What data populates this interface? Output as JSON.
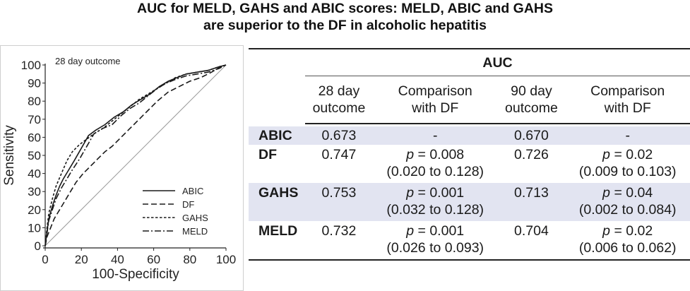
{
  "title": {
    "line1": "AUC for MELD, GAHS and ABIC scores: MELD, ABIC and GAHS",
    "line2": "are superior to the DF in alcoholic hepatitis"
  },
  "chart_data": {
    "type": "line",
    "annotation": "28 day outcome",
    "xlabel": "100-Specificity",
    "ylabel": "Sensitivity",
    "xlim": [
      0,
      100
    ],
    "ylim": [
      0,
      100
    ],
    "xticks": [
      0,
      20,
      40,
      60,
      80,
      100
    ],
    "yticks": [
      0,
      10,
      20,
      30,
      40,
      50,
      60,
      70,
      80,
      90,
      100
    ],
    "grid": false,
    "legend_position": "bottom-right",
    "reference_line": true,
    "series": [
      {
        "name": "ABIC",
        "style": "solid",
        "x": [
          0,
          1,
          2,
          4,
          6,
          8,
          10,
          13,
          16,
          20,
          24,
          28,
          33,
          38,
          43,
          48,
          53,
          58,
          63,
          68,
          73,
          78,
          84,
          90,
          96,
          100
        ],
        "y": [
          0,
          8,
          15,
          22,
          28,
          33,
          37,
          42,
          47,
          54,
          61,
          64,
          67,
          71,
          74,
          78,
          81,
          84,
          88,
          91,
          93,
          95,
          96,
          97,
          99,
          100
        ]
      },
      {
        "name": "DF",
        "style": "dashed",
        "x": [
          0,
          1,
          3,
          5,
          8,
          11,
          14,
          17,
          21,
          25,
          29,
          33,
          37,
          42,
          47,
          52,
          57,
          62,
          68,
          74,
          80,
          86,
          92,
          97,
          100
        ],
        "y": [
          0,
          5,
          10,
          15,
          20,
          25,
          30,
          35,
          40,
          44,
          48,
          52,
          55,
          60,
          65,
          70,
          75,
          80,
          85,
          88,
          91,
          93,
          96,
          99,
          100
        ]
      },
      {
        "name": "GAHS",
        "style": "short-dashed",
        "x": [
          0,
          1,
          2,
          4,
          6,
          9,
          12,
          15,
          19,
          23,
          27,
          32,
          37,
          42,
          47,
          52,
          57,
          62,
          67,
          72,
          78,
          84,
          90,
          96,
          100
        ],
        "y": [
          0,
          10,
          18,
          26,
          33,
          40,
          47,
          52,
          56,
          59,
          62,
          65,
          69,
          73,
          77,
          81,
          84,
          87,
          90,
          93,
          95,
          96,
          97,
          99,
          100
        ]
      },
      {
        "name": "MELD",
        "style": "dash-dot",
        "x": [
          0,
          1,
          2,
          4,
          6,
          9,
          12,
          15,
          19,
          23,
          27,
          32,
          37,
          42,
          47,
          52,
          57,
          62,
          67,
          72,
          78,
          84,
          90,
          96,
          100
        ],
        "y": [
          0,
          7,
          14,
          20,
          26,
          32,
          37,
          42,
          48,
          55,
          62,
          65,
          67,
          72,
          76,
          79,
          83,
          87,
          90,
          92,
          94,
          95,
          96,
          98,
          100
        ]
      }
    ]
  },
  "table": {
    "header_group": "AUC",
    "col1": {
      "l1": "28 day",
      "l2": "outcome"
    },
    "col2": {
      "l1": "Comparison",
      "l2": "with DF"
    },
    "col3": {
      "l1": "90 day",
      "l2": "outcome"
    },
    "col4": {
      "l1": "Comparison",
      "l2": "with DF"
    },
    "p_symbol": "p",
    "rows": [
      {
        "label": "ABIC",
        "auc28": "0.673",
        "cmp28": "-",
        "ci28": "",
        "auc90": "0.670",
        "cmp90": "-",
        "ci90": ""
      },
      {
        "label": "DF",
        "auc28": "0.747",
        "cmp28": " = 0.008",
        "ci28": "(0.020 to 0.128)",
        "auc90": "0.726",
        "cmp90": " = 0.02",
        "ci90": "(0.009 to 0.103)"
      },
      {
        "label": "GAHS",
        "auc28": "0.753",
        "cmp28": " = 0.001",
        "ci28": "(0.032 to 0.128)",
        "auc90": "0.713",
        "cmp90": " = 0.04",
        "ci90": "(0.002 to 0.084)"
      },
      {
        "label": "MELD",
        "auc28": "0.732",
        "cmp28": " = 0.001",
        "ci28": "(0.026 to 0.093)",
        "auc90": "0.704",
        "cmp90": " = 0.02",
        "ci90": "(0.006 to 0.062)"
      }
    ]
  }
}
